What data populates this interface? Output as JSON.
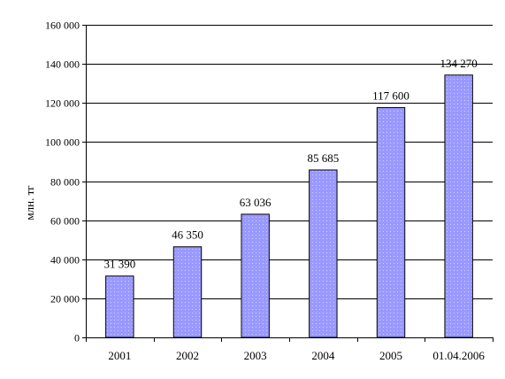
{
  "chart_data": {
    "type": "bar",
    "categories": [
      "2001",
      "2002",
      "2003",
      "2004",
      "2005",
      "01.04.2006"
    ],
    "values": [
      31390,
      46350,
      63036,
      85685,
      117600,
      134270
    ],
    "data_labels": [
      "31 390",
      "46 350",
      "63 036",
      "85 685",
      "117 600",
      "134 270"
    ],
    "ylabel": "млн. тг",
    "ylim": [
      0,
      160000
    ],
    "yticks": [
      0,
      20000,
      40000,
      60000,
      80000,
      100000,
      120000,
      140000,
      160000
    ],
    "ytick_labels": [
      "0",
      "20 000",
      "40 000",
      "60 000",
      "80 000",
      "100 000",
      "120 000",
      "140 000",
      "160 000"
    ],
    "grid": true,
    "bar_color": "#9999ff",
    "bar_pattern": "dotted"
  }
}
